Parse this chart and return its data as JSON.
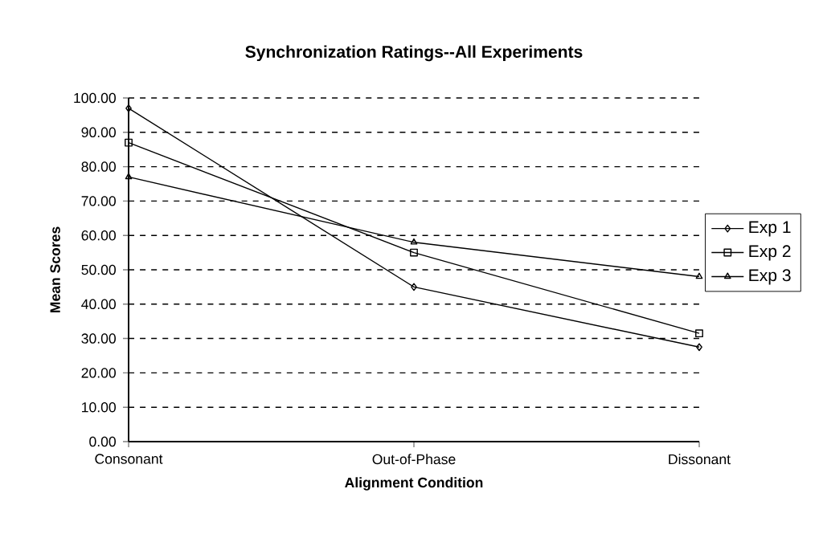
{
  "chart_data": {
    "type": "line",
    "title": "Synchronization Ratings--All Experiments",
    "xlabel": "Alignment Condition",
    "ylabel": "Mean Scores",
    "categories": [
      "Consonant",
      "Out-of-Phase",
      "Dissonant"
    ],
    "series": [
      {
        "name": "Exp 1",
        "color": "#000000",
        "marker": "diamond",
        "values": [
          97,
          45,
          27.5
        ]
      },
      {
        "name": "Exp 2",
        "color": "#000000",
        "marker": "square",
        "values": [
          87,
          55,
          31.5
        ]
      },
      {
        "name": "Exp 3",
        "color": "#000000",
        "marker": "triangle",
        "values": [
          77,
          58,
          48
        ]
      }
    ],
    "ylim": [
      0,
      100
    ],
    "yticks": [
      {
        "value": 0,
        "label": "0.00"
      },
      {
        "value": 10,
        "label": "10.00"
      },
      {
        "value": 20,
        "label": "20.00"
      },
      {
        "value": 30,
        "label": "30.00"
      },
      {
        "value": 40,
        "label": "40.00"
      },
      {
        "value": 50,
        "label": "50.00"
      },
      {
        "value": 60,
        "label": "60.00"
      },
      {
        "value": 70,
        "label": "70.00"
      },
      {
        "value": 80,
        "label": "80.00"
      },
      {
        "value": 90,
        "label": "90.00"
      },
      {
        "value": 100,
        "label": "100.00"
      }
    ],
    "grid": "y",
    "legend": "right",
    "line_style": "solid"
  }
}
